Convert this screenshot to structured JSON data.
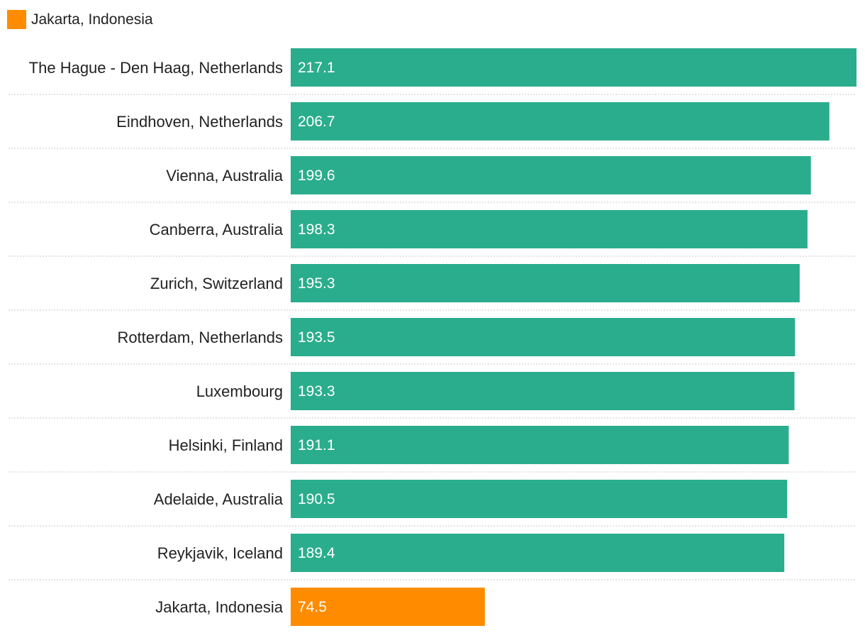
{
  "legend": {
    "label": "Jakarta, Indonesia",
    "color": "#ff8c00"
  },
  "colors": {
    "default_bar": "#2aad8d",
    "highlight_bar": "#ff8c00",
    "value_text": "#ffffff",
    "label_text": "#222222",
    "divider": "#c9c9c9"
  },
  "chart_data": {
    "type": "bar",
    "orientation": "horizontal",
    "title": "",
    "xlabel": "",
    "ylabel": "",
    "grid": false,
    "legend_position": "top-left",
    "xlim": [
      0,
      217.1
    ],
    "highlight_category": "Jakarta, Indonesia",
    "categories": [
      "The Hague - Den Haag, Netherlands",
      "Eindhoven, Netherlands",
      "Vienna, Australia",
      "Canberra, Australia",
      "Zurich, Switzerland",
      "Rotterdam, Netherlands",
      "Luxembourg",
      "Helsinki, Finland",
      "Adelaide, Australia",
      "Reykjavik, Iceland",
      "Jakarta, Indonesia"
    ],
    "values": [
      217.1,
      206.7,
      199.6,
      198.3,
      195.3,
      193.5,
      193.3,
      191.1,
      190.5,
      189.4,
      74.5
    ],
    "value_labels": [
      "217.1",
      "206.7",
      "199.6",
      "198.3",
      "195.3",
      "193.5",
      "193.3",
      "191.1",
      "190.5",
      "189.4",
      "74.5"
    ]
  }
}
